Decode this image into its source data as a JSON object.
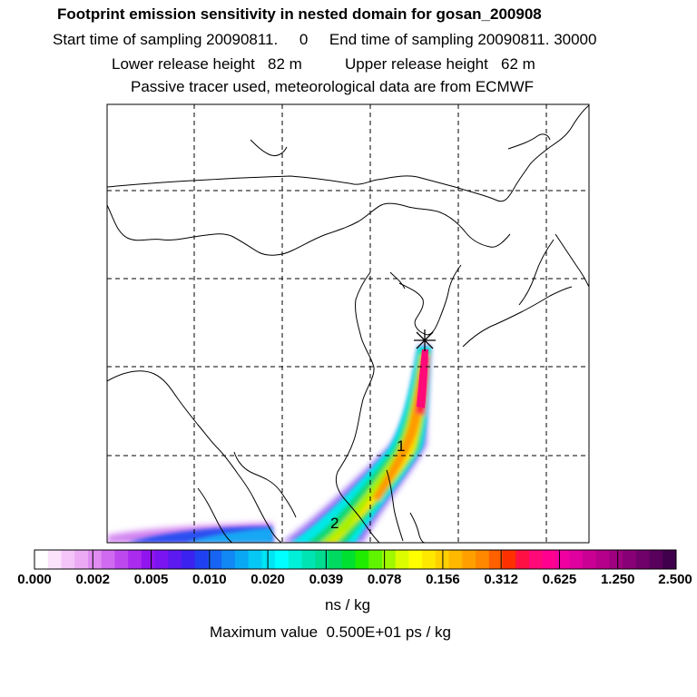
{
  "header": {
    "title": "Footprint emission sensitivity in nested domain for gosan_200908",
    "line2": "Start time of sampling 20090811.     0     End time of sampling 20090811. 30000",
    "line3": "Lower release height   82 m          Upper release height   62 m",
    "line4": "Passive tracer used, meteorological data are from ECMWF"
  },
  "map": {
    "release_site_marker": "star-marker",
    "trajectory_labels": [
      "1",
      "2"
    ]
  },
  "colorbar": {
    "ticks": [
      "0.000",
      "0.002",
      "0.005",
      "0.010",
      "0.020",
      "0.039",
      "0.078",
      "0.156",
      "0.312",
      "0.625",
      "1.250",
      "2.500"
    ],
    "colors": [
      "#ffffff",
      "#fbe3fb",
      "#f5c4f8",
      "#ecaaf5",
      "#e08cf2",
      "#d06af0",
      "#bd49ee",
      "#aa2aee",
      "#9114ee",
      "#7a14f0",
      "#5c1af0",
      "#3b22f0",
      "#2040f0",
      "#1764f2",
      "#1188f4",
      "#0aa8f4",
      "#06c8f4",
      "#00e4f4",
      "#00ffff",
      "#00f0d8",
      "#00e4b4",
      "#00dc90",
      "#00da60",
      "#00e030",
      "#20ec00",
      "#60f400",
      "#a0f800",
      "#dcfc00",
      "#ffff00",
      "#ffe800",
      "#ffd000",
      "#ffb800",
      "#ffa000",
      "#ff8800",
      "#ff6000",
      "#ff3000",
      "#ff1044",
      "#ff0878",
      "#ff0090",
      "#f000a0",
      "#e000a0",
      "#ca0095",
      "#b4008a",
      "#9e0080",
      "#880075",
      "#70006a",
      "#58005c",
      "#40004c"
    ],
    "units": "ns / kg",
    "max_value_text": "Maximum value  0.500E+01 ps / kg"
  }
}
